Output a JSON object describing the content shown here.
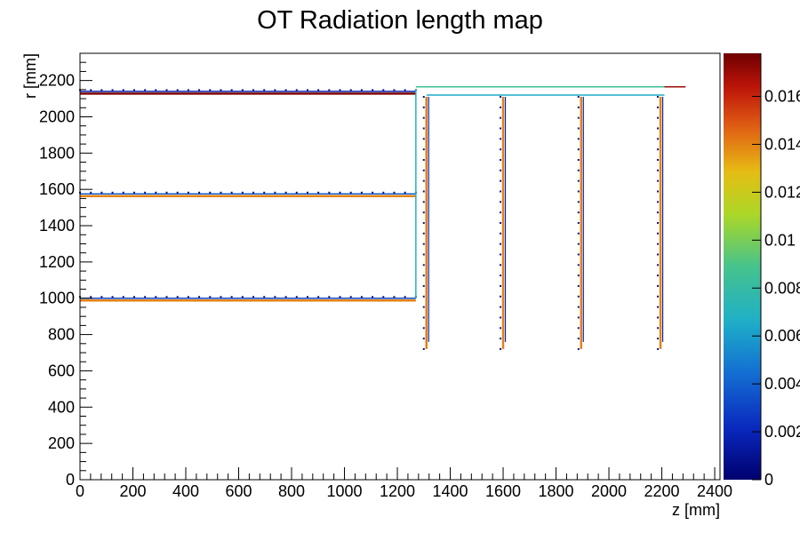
{
  "chart_data": {
    "type": "heatmap",
    "title": "OT Radiation length map",
    "xlabel": "z [mm]",
    "ylabel": "r [mm]",
    "xlim": [
      0,
      2420
    ],
    "ylim": [
      0,
      2350
    ],
    "x_ticks": [
      0,
      200,
      400,
      600,
      800,
      1000,
      1200,
      1400,
      1600,
      1800,
      2000,
      2200,
      2400
    ],
    "y_ticks": [
      0,
      200,
      400,
      600,
      800,
      1000,
      1200,
      1400,
      1600,
      1800,
      2000,
      2200
    ],
    "colorbar": {
      "min": 0,
      "max": 0.0178,
      "ticks": [
        0,
        0.002,
        0.004,
        0.006,
        0.008,
        0.01,
        0.012,
        0.014,
        0.016
      ],
      "tick_labels": [
        "0",
        "0.002",
        "0.004",
        "0.006",
        "0.008",
        "0.01",
        "0.012",
        "0.014",
        "0.016"
      ]
    },
    "barrel_layers": [
      {
        "r": 2140,
        "z_min": 0,
        "z_max": 1270,
        "x0_inner": 0.0015,
        "x0_outer": 0.0175
      },
      {
        "r": 1575,
        "z_min": 0,
        "z_max": 1270,
        "x0_inner": 0.004,
        "x0_outer": 0.014
      },
      {
        "r": 1000,
        "z_min": 0,
        "z_max": 1270,
        "x0_inner": 0.003,
        "x0_outer": 0.014
      }
    ],
    "endcap_disks": [
      {
        "z": 1310,
        "r_min": 720,
        "r_max": 2110,
        "x0": 0.014
      },
      {
        "z": 1600,
        "r_min": 720,
        "r_max": 2110,
        "x0": 0.014
      },
      {
        "z": 1895,
        "r_min": 720,
        "r_max": 2110,
        "x0": 0.014
      },
      {
        "z": 2195,
        "r_min": 720,
        "r_max": 2110,
        "x0": 0.014
      }
    ],
    "support_structures": [
      {
        "shape": "vline",
        "z": 1270,
        "r_min": 1000,
        "r_max": 2150,
        "x0": 0.007
      },
      {
        "shape": "hline",
        "r": 2165,
        "z_min": 1270,
        "z_max": 2210,
        "x0": 0.0085
      },
      {
        "shape": "hline",
        "r": 2120,
        "z_min": 1310,
        "z_max": 2210,
        "x0": 0.0065
      },
      {
        "shape": "hline",
        "r": 2165,
        "z_min": 2210,
        "z_max": 2290,
        "x0": 0.017
      }
    ]
  }
}
